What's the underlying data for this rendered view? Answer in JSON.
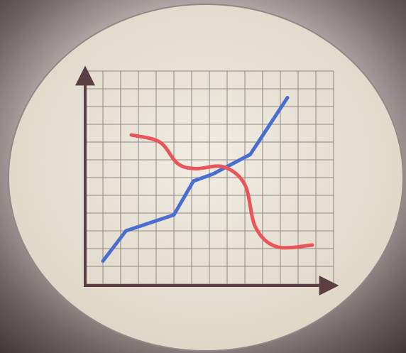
{
  "chart_data": {
    "type": "line",
    "xlim": [
      0,
      14
    ],
    "ylim": [
      0,
      12
    ],
    "xticks": [
      0,
      1,
      2,
      3,
      4,
      5,
      6,
      7,
      8,
      9,
      10,
      11,
      12,
      13,
      14
    ],
    "yticks": [
      0,
      1,
      2,
      3,
      4,
      5,
      6,
      7,
      8,
      9,
      10,
      11,
      12
    ],
    "grid": true,
    "series": [
      {
        "color": "#4a6fd0",
        "smooth": false,
        "x": [
          1,
          2.3,
          5,
          6.1,
          7.2,
          9.3,
          11.4
        ],
        "values": [
          1.3,
          3,
          3.9,
          5.8,
          6.2,
          7.3,
          10.5
        ]
      },
      {
        "color": "#e8555a",
        "smooth": true,
        "x": [
          2.6,
          4.2,
          5.2,
          6.2,
          7.8,
          9,
          9.6,
          10.8,
          12.8
        ],
        "values": [
          8.4,
          8,
          6.8,
          6.5,
          6.6,
          5.6,
          3.2,
          2.1,
          2.2
        ]
      }
    ]
  }
}
